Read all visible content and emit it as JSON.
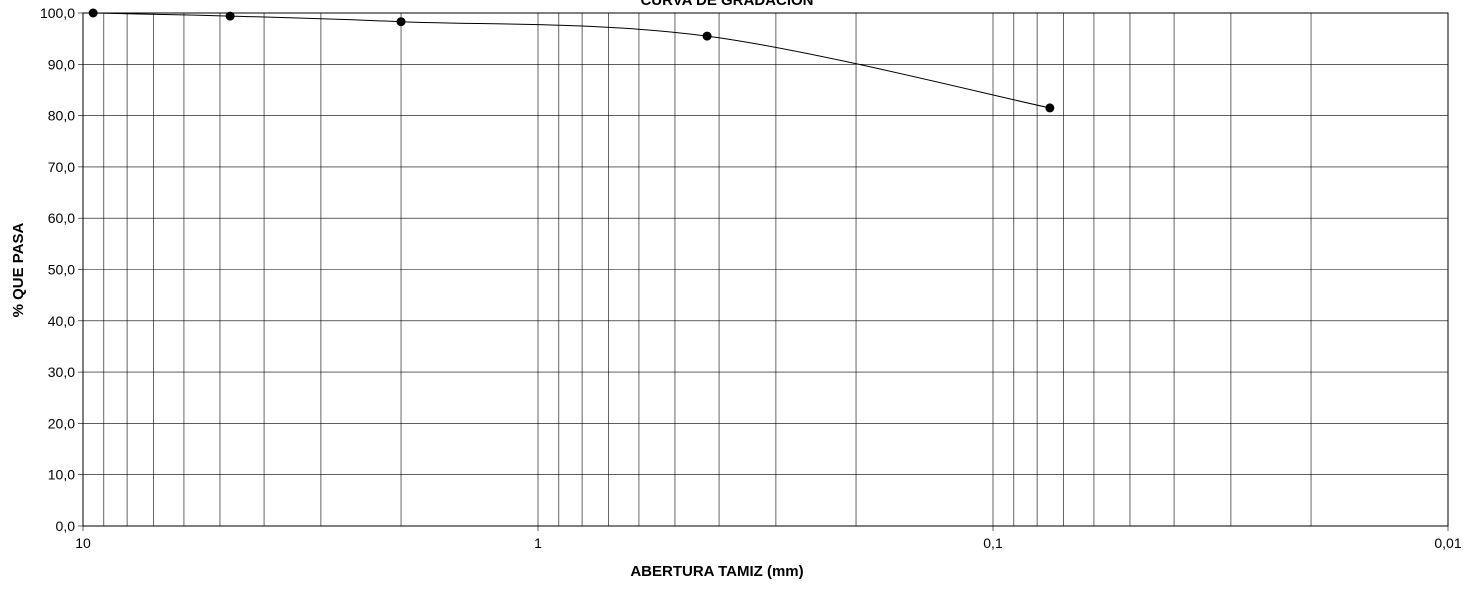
{
  "chart_data": {
    "type": "scatter",
    "title": "CURVA DE GRADACION",
    "xlabel": "ABERTURA TAMIZ (mm)",
    "ylabel": "% QUE PASA",
    "x_scale": "log",
    "x_reversed": true,
    "xlim": [
      10,
      0.01
    ],
    "ylim": [
      0,
      100
    ],
    "x_ticks": [
      10,
      1,
      0.1,
      0.01
    ],
    "x_tick_labels": [
      "10",
      "1",
      "0,1",
      "0,01"
    ],
    "y_ticks": [
      0,
      10,
      20,
      30,
      40,
      50,
      60,
      70,
      80,
      90,
      100
    ],
    "y_tick_labels": [
      "0,0",
      "10,0",
      "20,0",
      "30,0",
      "40,0",
      "50,0",
      "60,0",
      "70,0",
      "80,0",
      "90,0",
      "100,0"
    ],
    "grid": true,
    "series": [
      {
        "x": [
          9.5,
          4.75,
          2.0,
          0.425,
          0.075
        ],
        "y": [
          100.0,
          99.4,
          98.3,
          95.5,
          81.5
        ],
        "smooth_line": true,
        "marker": "circle",
        "color": "#000000"
      }
    ]
  }
}
